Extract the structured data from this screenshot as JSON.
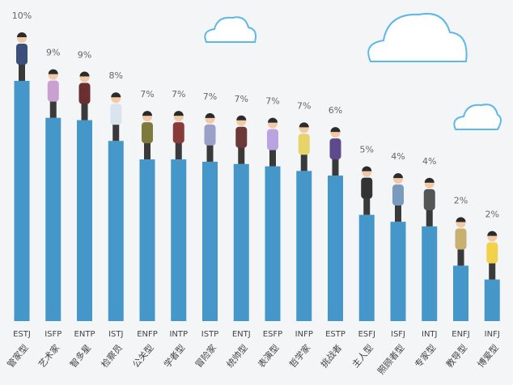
{
  "chart_data": {
    "type": "bar",
    "categories": [
      "ESTJ",
      "ISFP",
      "ENTP",
      "ISTJ",
      "ENFP",
      "INTP",
      "ISTP",
      "ENTJ",
      "ESFP",
      "INFP",
      "ESTP",
      "ESFJ",
      "ISFJ",
      "INTJ",
      "ENFJ",
      "INFJ"
    ],
    "category_names": [
      "管家型",
      "艺术家",
      "智多星",
      "检察员",
      "公关型",
      "学者型",
      "冒险家",
      "统帅型",
      "表演型",
      "哲学家",
      "挑战者",
      "主人型",
      "照顾者型",
      "专家型",
      "教导型",
      "博爱型"
    ],
    "values": [
      10.4,
      8.8,
      8.7,
      7.8,
      7.0,
      7.0,
      6.9,
      6.8,
      6.7,
      6.5,
      6.3,
      4.6,
      4.3,
      4.1,
      2.4,
      1.8
    ],
    "value_labels": [
      "10%",
      "9%",
      "9%",
      "8%",
      "7%",
      "7%",
      "7%",
      "7%",
      "7%",
      "7%",
      "6%",
      "5%",
      "4%",
      "4%",
      "2%",
      "2%"
    ],
    "color": "#4697c9",
    "ylim": [
      0,
      13.9
    ]
  }
}
